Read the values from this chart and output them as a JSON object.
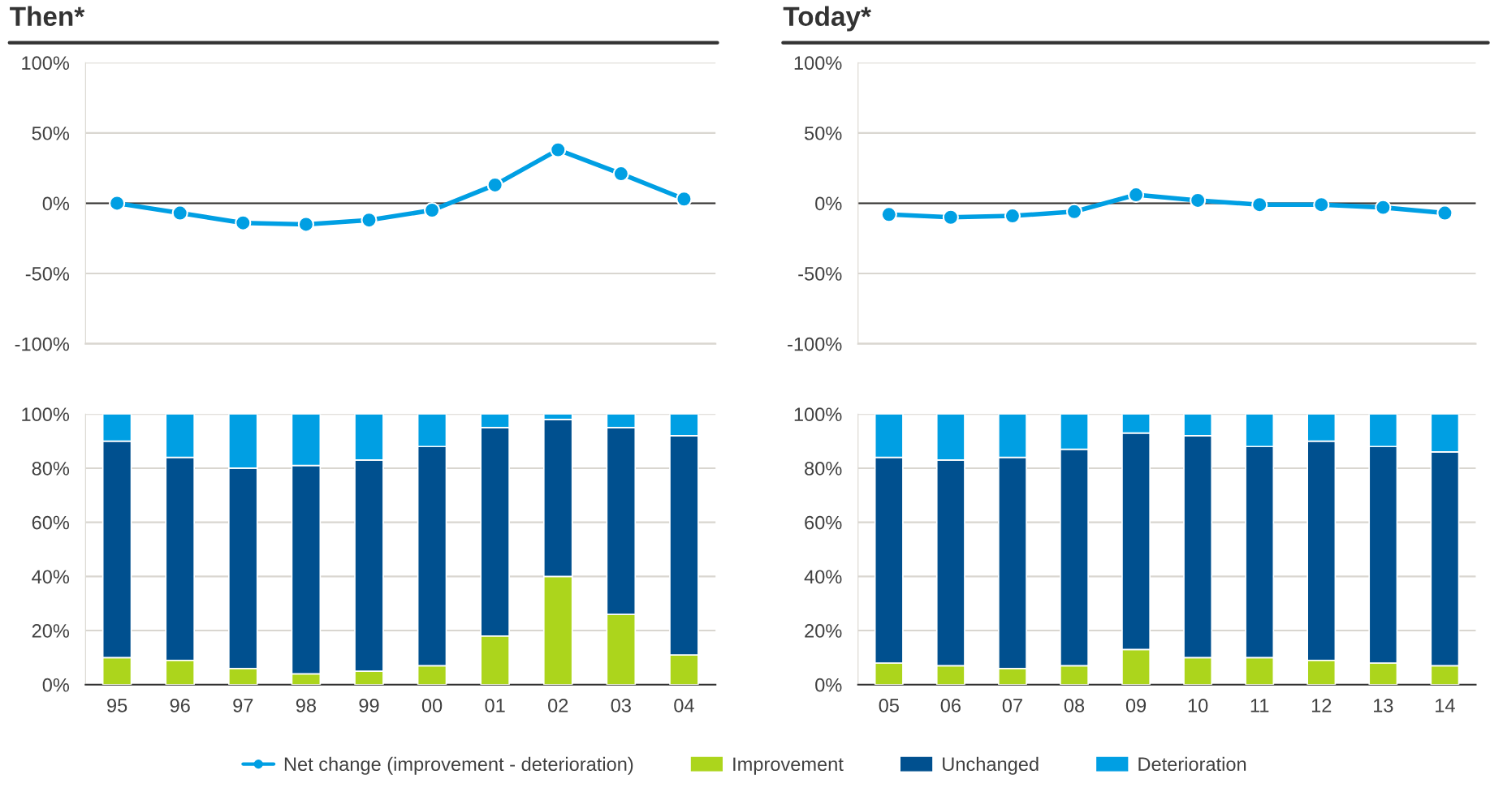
{
  "chart_data": [
    {
      "type": "line",
      "title": "Then*",
      "categories": [
        "95",
        "96",
        "97",
        "98",
        "99",
        "00",
        "01",
        "02",
        "03",
        "04"
      ],
      "tick_labels": "y",
      "ylim": [
        -100,
        100
      ],
      "yticks": [
        {
          "value": -100,
          "label": "-100%"
        },
        {
          "value": -50,
          "label": "-50%"
        },
        {
          "value": 0,
          "label": "0%"
        },
        {
          "value": 50,
          "label": "50%"
        },
        {
          "value": 100,
          "label": "100%"
        }
      ],
      "grid": "y",
      "marker": "circle",
      "legend": "bottom",
      "ref_lines": [
        {
          "axis": "y",
          "value": 0,
          "color": "#333333"
        }
      ],
      "series": [
        {
          "name": "Net change (improvement - deterioration)",
          "color": "#009fe3",
          "values": [
            0,
            -7,
            -14,
            -15,
            -12,
            -5,
            13,
            38,
            21,
            3
          ]
        }
      ]
    },
    {
      "type": "line",
      "title": "Today*",
      "categories": [
        "05",
        "06",
        "07",
        "08",
        "09",
        "10",
        "11",
        "12",
        "13",
        "14"
      ],
      "tick_labels": "y",
      "ylim": [
        -100,
        100
      ],
      "yticks": [
        {
          "value": -100,
          "label": "-100%"
        },
        {
          "value": -50,
          "label": "-50%"
        },
        {
          "value": 0,
          "label": "0%"
        },
        {
          "value": 50,
          "label": "50%"
        },
        {
          "value": 100,
          "label": "100%"
        }
      ],
      "grid": "y",
      "marker": "circle",
      "ref_lines": [
        {
          "axis": "y",
          "value": 0,
          "color": "#333333"
        }
      ],
      "series": [
        {
          "color": "#009fe3",
          "values": [
            -8,
            -10,
            -9,
            -6,
            6,
            2,
            -1,
            -1,
            -3,
            -7
          ]
        }
      ]
    },
    {
      "type": "bar",
      "stacked": true,
      "legend": "bottom",
      "categories": [
        "95",
        "96",
        "97",
        "98",
        "99",
        "00",
        "01",
        "02",
        "03",
        "04"
      ],
      "ylim": [
        0,
        100
      ],
      "yticks": [
        {
          "value": 0,
          "label": "0%"
        },
        {
          "value": 20,
          "label": "20%"
        },
        {
          "value": 40,
          "label": "40%"
        },
        {
          "value": 60,
          "label": "60%"
        },
        {
          "value": 80,
          "label": "80%"
        },
        {
          "value": 100,
          "label": "100%"
        }
      ],
      "grid": "y",
      "series": [
        {
          "name": "Improvement",
          "color": "#acd51c",
          "values": [
            10,
            9,
            6,
            4,
            5,
            7,
            18,
            40,
            26,
            11
          ]
        },
        {
          "name": "Unchanged",
          "color": "#00508f",
          "values": [
            80,
            75,
            74,
            77,
            78,
            81,
            77,
            58,
            69,
            81
          ]
        },
        {
          "name": "Deterioration",
          "color": "#009fe3",
          "values": [
            10,
            16,
            20,
            19,
            17,
            12,
            5,
            2,
            5,
            8
          ]
        }
      ]
    },
    {
      "type": "bar",
      "stacked": true,
      "categories": [
        "05",
        "06",
        "07",
        "08",
        "09",
        "10",
        "11",
        "12",
        "13",
        "14"
      ],
      "ylim": [
        0,
        100
      ],
      "yticks": [
        {
          "value": 0,
          "label": "0%"
        },
        {
          "value": 20,
          "label": "20%"
        },
        {
          "value": 40,
          "label": "40%"
        },
        {
          "value": 60,
          "label": "60%"
        },
        {
          "value": 80,
          "label": "80%"
        },
        {
          "value": 100,
          "label": "100%"
        }
      ],
      "grid": "y",
      "series": [
        {
          "color": "#acd51c",
          "values": [
            8,
            7,
            6,
            7,
            13,
            10,
            10,
            9,
            8,
            7
          ]
        },
        {
          "color": "#00508f",
          "values": [
            76,
            76,
            78,
            80,
            80,
            82,
            78,
            81,
            80,
            79
          ]
        },
        {
          "color": "#009fe3",
          "values": [
            16,
            17,
            16,
            13,
            7,
            8,
            12,
            10,
            12,
            14
          ]
        }
      ]
    }
  ]
}
